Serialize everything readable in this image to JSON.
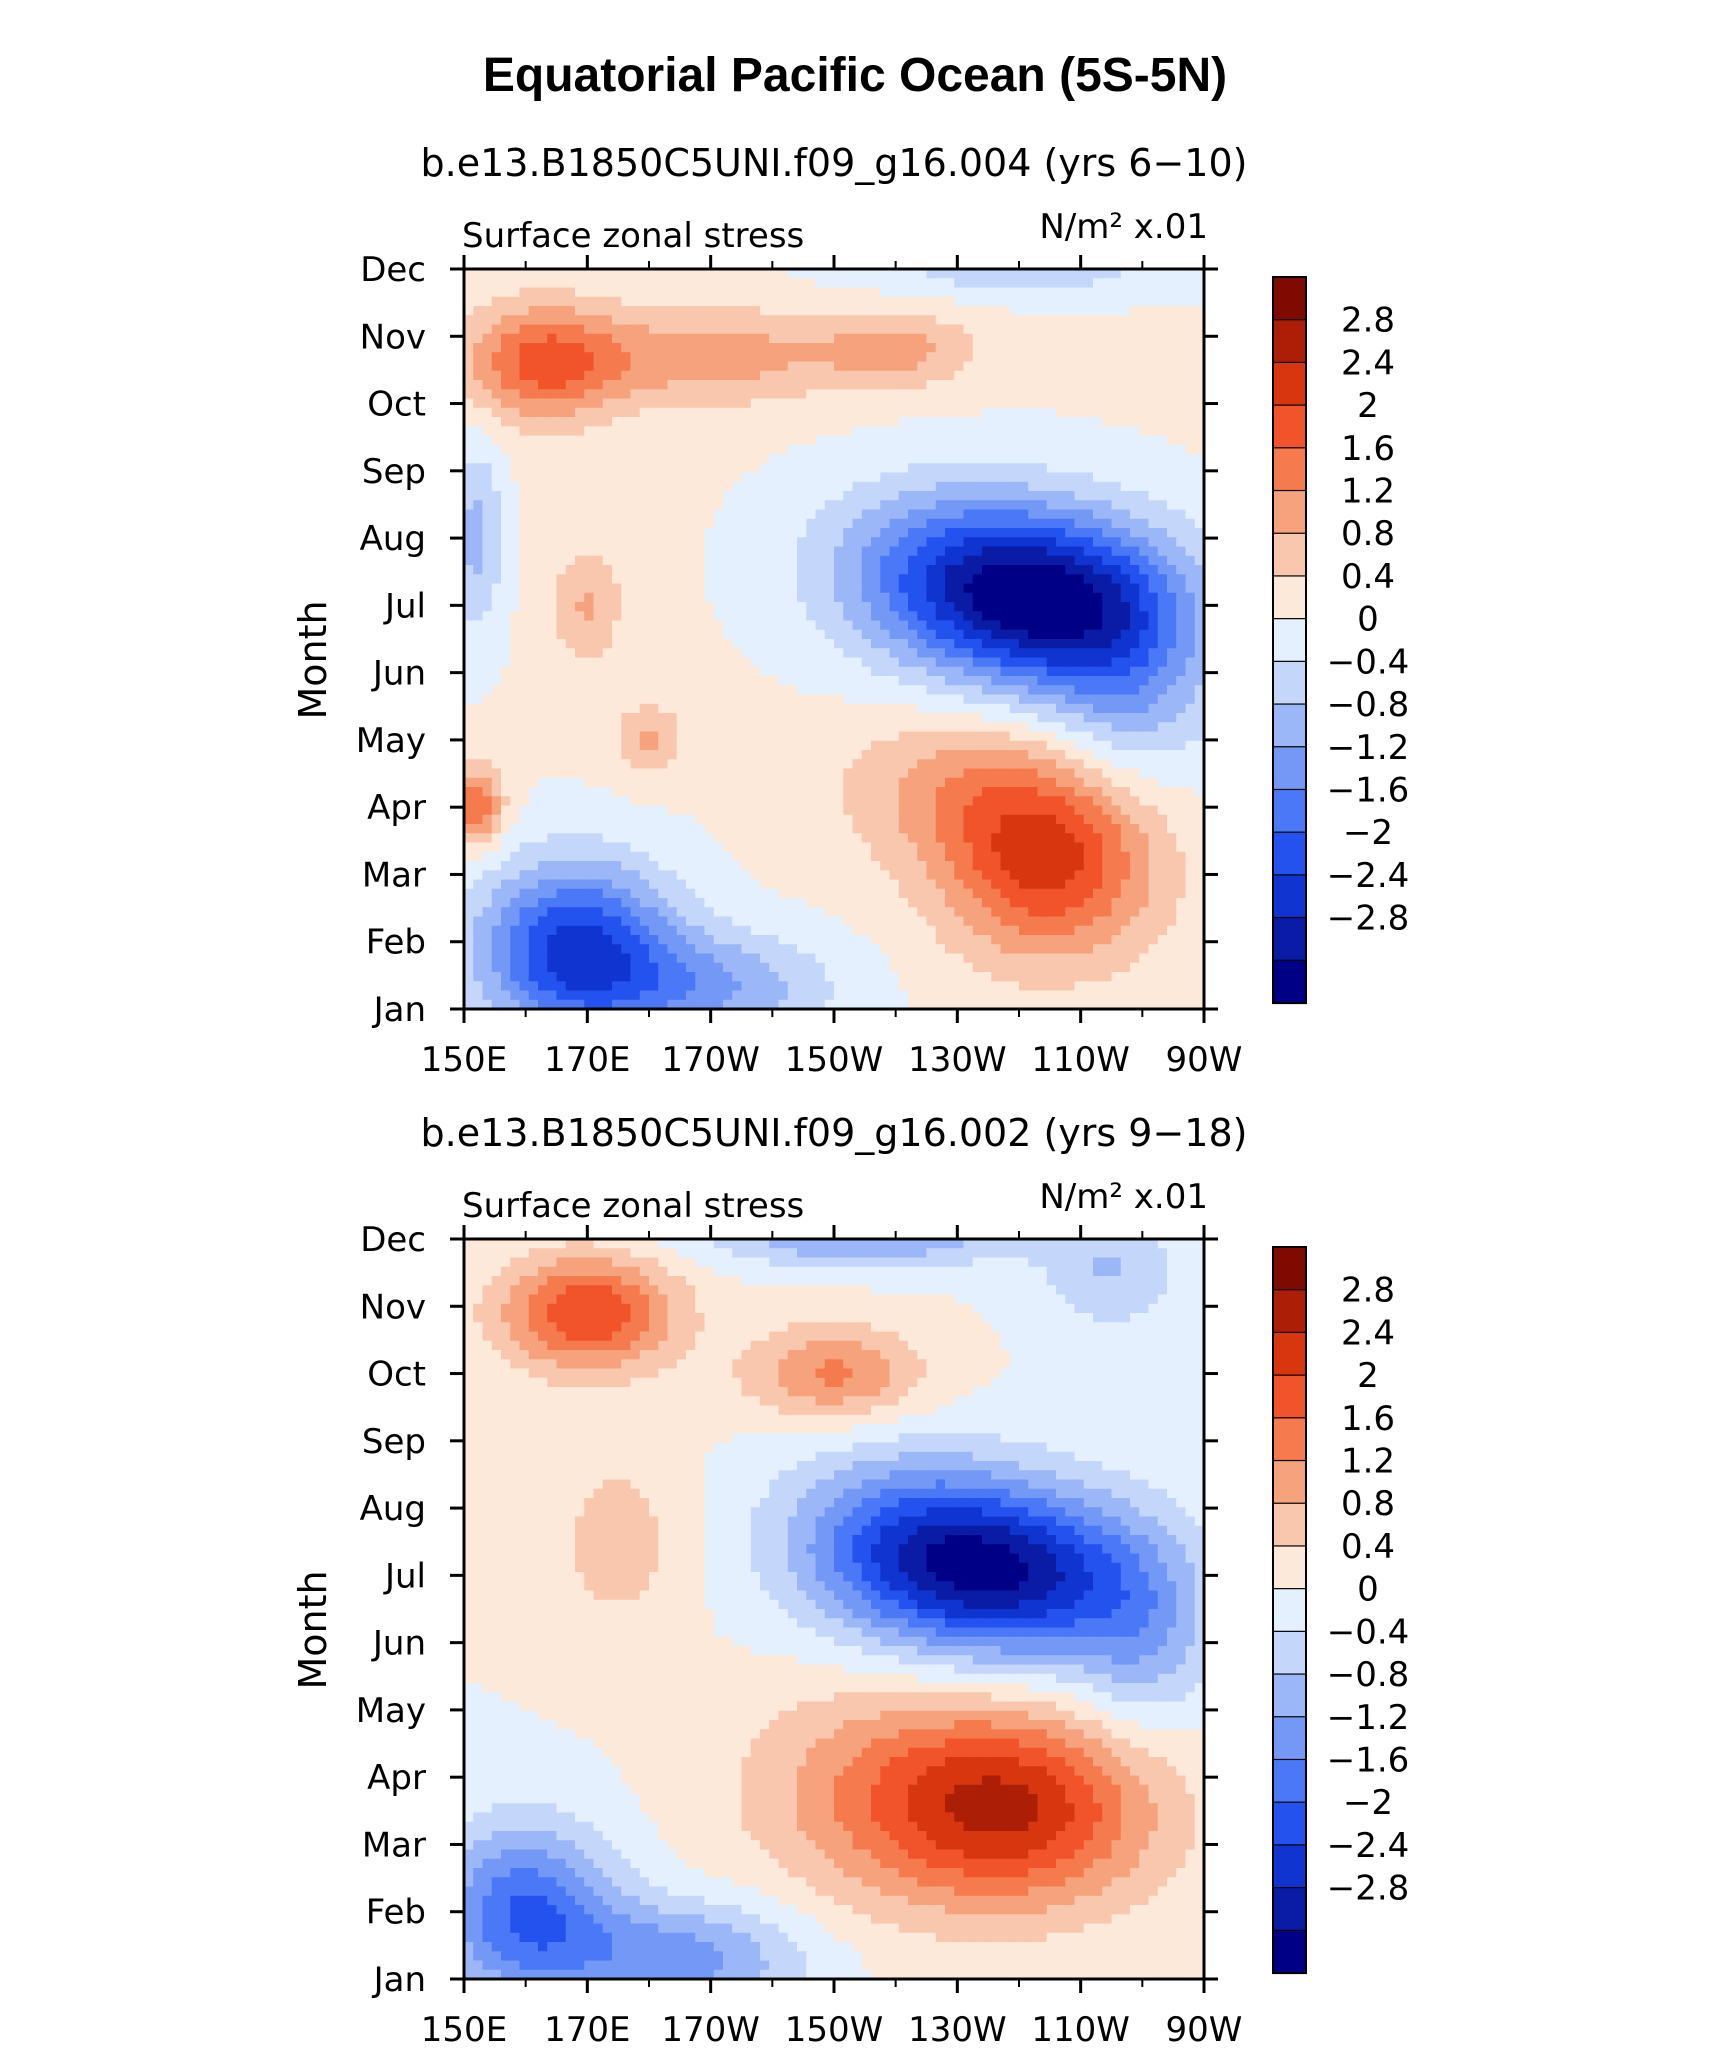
{
  "page": {
    "title": "Equatorial Pacific Ocean (5S-5N)"
  },
  "colors": {
    "levels": [
      -2.8,
      -2.4,
      -2.0,
      -1.6,
      -1.2,
      -0.8,
      -0.4,
      0,
      0.4,
      0.8,
      1.2,
      1.6,
      2.0,
      2.4,
      2.8
    ],
    "fills": [
      "#000087",
      "#0a1ca6",
      "#0f34d0",
      "#2452ef",
      "#4a78f6",
      "#7398f6",
      "#9bb7f7",
      "#c4d7fa",
      "#e4f0fd",
      "#fde9da",
      "#f9c7ae",
      "#f6a27d",
      "#f57a4e",
      "#f1542a",
      "#d8360f",
      "#ad1e07",
      "#7f0a00"
    ]
  },
  "chart_data": [
    {
      "type": "heatmap",
      "subtitle": "b.e13.B1850C5UNI.f09_g16.004 (yrs 6−10)",
      "left_label": "Surface zonal stress",
      "right_label": "N/m² x.01",
      "ylabel": "Month",
      "xlabel": "",
      "x_ticks": [
        "150E",
        "170E",
        "170W",
        "150W",
        "130W",
        "110W",
        "90W"
      ],
      "x_tick_values": [
        150,
        170,
        190,
        210,
        230,
        250,
        270
      ],
      "y_ticks": [
        "Jan",
        "Feb",
        "Mar",
        "Apr",
        "May",
        "Jun",
        "Jul",
        "Aug",
        "Sep",
        "Oct",
        "Nov",
        "Dec"
      ],
      "xlim": [
        150,
        270
      ],
      "ylim": [
        1,
        12
      ],
      "colorbar_labels": [
        "2.8",
        "2.4",
        "2",
        "1.6",
        "1.2",
        "0.8",
        "0.4",
        "0",
        "−0.4",
        "−0.8",
        "−1.2",
        "−1.6",
        "−2",
        "−2.4",
        "−2.8"
      ],
      "blobs": [
        {
          "x": 168,
          "y": 1.9,
          "amp": -2.6,
          "sx": 11,
          "sy": 0.9
        },
        {
          "x": 190,
          "y": 1.3,
          "amp": -1.2,
          "sx": 14,
          "sy": 0.6
        },
        {
          "x": 245,
          "y": 7.0,
          "amp": -2.9,
          "sx": 15,
          "sy": 0.9
        },
        {
          "x": 228,
          "y": 7.6,
          "amp": -1.5,
          "sx": 15,
          "sy": 0.9
        },
        {
          "x": 258,
          "y": 5.8,
          "amp": -1.0,
          "sx": 10,
          "sy": 1.2
        },
        {
          "x": 245,
          "y": 3.2,
          "amp": 2.1,
          "sx": 12,
          "sy": 1.0
        },
        {
          "x": 230,
          "y": 4.3,
          "amp": 0.8,
          "sx": 14,
          "sy": 0.8
        },
        {
          "x": 163,
          "y": 10.6,
          "amp": 1.7,
          "sx": 9,
          "sy": 0.6
        },
        {
          "x": 190,
          "y": 10.7,
          "amp": 1.0,
          "sx": 14,
          "sy": 0.5
        },
        {
          "x": 220,
          "y": 10.8,
          "amp": 0.9,
          "sx": 9,
          "sy": 0.4
        },
        {
          "x": 152,
          "y": 4.0,
          "amp": 1.6,
          "sx": 3,
          "sy": 0.4
        },
        {
          "x": 170,
          "y": 7.0,
          "amp": 0.8,
          "sx": 4,
          "sy": 0.6
        },
        {
          "x": 180,
          "y": 5.0,
          "amp": 0.8,
          "sx": 4,
          "sy": 0.4
        },
        {
          "x": 152,
          "y": 8.0,
          "amp": -1.0,
          "sx": 3,
          "sy": 1.0
        },
        {
          "x": 240,
          "y": 12.0,
          "amp": -0.7,
          "sx": 18,
          "sy": 0.3
        }
      ],
      "base": 0.45
    },
    {
      "type": "heatmap",
      "subtitle": "b.e13.B1850C5UNI.f09_g16.002 (yrs 9−18)",
      "left_label": "Surface zonal stress",
      "right_label": "N/m² x.01",
      "ylabel": "Month",
      "xlabel": "",
      "x_ticks": [
        "150E",
        "170E",
        "170W",
        "150W",
        "130W",
        "110W",
        "90W"
      ],
      "x_tick_values": [
        150,
        170,
        190,
        210,
        230,
        250,
        270
      ],
      "y_ticks": [
        "Jan",
        "Feb",
        "Mar",
        "Apr",
        "May",
        "Jun",
        "Jul",
        "Aug",
        "Sep",
        "Oct",
        "Nov",
        "Dec"
      ],
      "xlim": [
        150,
        270
      ],
      "ylim": [
        1,
        12
      ],
      "colorbar_labels": [
        "2.8",
        "2.4",
        "2",
        "1.6",
        "1.2",
        "0.8",
        "0.4",
        "0",
        "−0.4",
        "−0.8",
        "−1.2",
        "−1.6",
        "−2",
        "−2.4",
        "−2.8"
      ],
      "blobs": [
        {
          "x": 160,
          "y": 2.0,
          "amp": -2.0,
          "sx": 10,
          "sy": 0.9
        },
        {
          "x": 185,
          "y": 1.3,
          "amp": -1.4,
          "sx": 14,
          "sy": 0.6
        },
        {
          "x": 238,
          "y": 7.0,
          "amp": -2.9,
          "sx": 16,
          "sy": 0.9
        },
        {
          "x": 220,
          "y": 7.6,
          "amp": -1.4,
          "sx": 14,
          "sy": 0.9
        },
        {
          "x": 260,
          "y": 6.0,
          "amp": -0.9,
          "sx": 8,
          "sy": 1.0
        },
        {
          "x": 240,
          "y": 3.5,
          "amp": 2.0,
          "sx": 16,
          "sy": 1.0
        },
        {
          "x": 220,
          "y": 3.8,
          "amp": 1.0,
          "sx": 18,
          "sy": 1.2
        },
        {
          "x": 170,
          "y": 10.9,
          "amp": 2.0,
          "sx": 10,
          "sy": 0.6
        },
        {
          "x": 210,
          "y": 10.0,
          "amp": 1.3,
          "sx": 10,
          "sy": 0.5
        },
        {
          "x": 215,
          "y": 12.0,
          "amp": -1.2,
          "sx": 18,
          "sy": 0.3
        },
        {
          "x": 255,
          "y": 11.5,
          "amp": -0.8,
          "sx": 8,
          "sy": 0.6
        },
        {
          "x": 175,
          "y": 7.5,
          "amp": 0.6,
          "sx": 8,
          "sy": 1.0
        }
      ],
      "base": 0.4
    }
  ]
}
